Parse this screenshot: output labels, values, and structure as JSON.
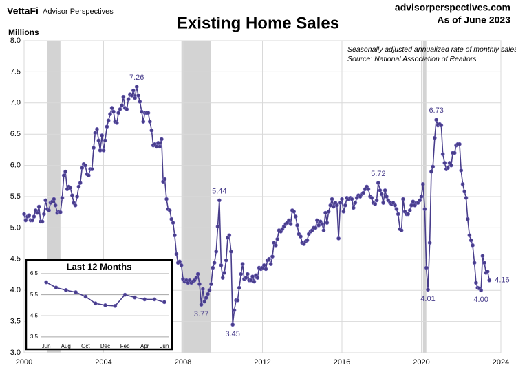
{
  "header": {
    "logo": "VettaFi",
    "brand": "Advisor Perspectives",
    "site": "advisorperspectives.com",
    "date": "As of June 2023"
  },
  "chart_data": [
    {
      "type": "line",
      "title": "Existing Home Sales",
      "y_label": "Millions",
      "notes": [
        "Seasonally adjusted annualized rate of monthly sales",
        "Source: National Association of Realtors"
      ],
      "xlim": [
        2000,
        2024
      ],
      "xticks": [
        2000,
        2004,
        2008,
        2012,
        2016,
        2020,
        2024
      ],
      "ylim": [
        3,
        8
      ],
      "yticks": [
        {
          "value": 3,
          "label": "3.0"
        },
        3.5,
        {
          "value": 4,
          "label": "4.0"
        },
        4.5,
        {
          "value": 5,
          "label": "5.0"
        },
        5.5,
        {
          "value": 6,
          "label": "6.0"
        },
        6.5,
        {
          "value": 7,
          "label": "7.0"
        },
        7.5,
        {
          "value": 8,
          "label": "8.0"
        }
      ],
      "grid": true,
      "recessions": [
        [
          2001.17,
          2001.83
        ],
        [
          2007.92,
          2009.42
        ],
        [
          2020.08,
          2020.25
        ]
      ],
      "recession_color": "#d3d3d3",
      "x": [
        2000,
        2000.08,
        2000.17,
        2000.25,
        2000.33,
        2000.42,
        2000.5,
        2000.58,
        2000.67,
        2000.75,
        2000.83,
        2000.92,
        2001,
        2001.08,
        2001.17,
        2001.25,
        2001.33,
        2001.42,
        2001.5,
        2001.58,
        2001.67,
        2001.75,
        2001.83,
        2001.92,
        2002,
        2002.08,
        2002.17,
        2002.25,
        2002.33,
        2002.42,
        2002.5,
        2002.58,
        2002.67,
        2002.75,
        2002.83,
        2002.92,
        2003,
        2003.08,
        2003.17,
        2003.25,
        2003.33,
        2003.42,
        2003.5,
        2003.58,
        2003.67,
        2003.75,
        2003.83,
        2003.92,
        2004,
        2004.08,
        2004.17,
        2004.25,
        2004.33,
        2004.42,
        2004.5,
        2004.58,
        2004.67,
        2004.75,
        2004.83,
        2004.92,
        2005,
        2005.08,
        2005.17,
        2005.25,
        2005.33,
        2005.42,
        2005.5,
        2005.58,
        2005.67,
        2005.75,
        2005.83,
        2005.92,
        2006,
        2006.08,
        2006.17,
        2006.25,
        2006.33,
        2006.42,
        2006.5,
        2006.58,
        2006.67,
        2006.75,
        2006.83,
        2006.92,
        2007,
        2007.08,
        2007.17,
        2007.25,
        2007.33,
        2007.42,
        2007.5,
        2007.58,
        2007.67,
        2007.75,
        2007.83,
        2007.92,
        2008,
        2008.08,
        2008.17,
        2008.25,
        2008.33,
        2008.42,
        2008.5,
        2008.58,
        2008.67,
        2008.75,
        2008.83,
        2008.92,
        2009,
        2009.08,
        2009.17,
        2009.25,
        2009.33,
        2009.42,
        2009.5,
        2009.58,
        2009.67,
        2009.75,
        2009.83,
        2009.92,
        2010,
        2010.08,
        2010.17,
        2010.25,
        2010.33,
        2010.42,
        2010.5,
        2010.58,
        2010.67,
        2010.75,
        2010.83,
        2010.92,
        2011,
        2011.08,
        2011.17,
        2011.25,
        2011.33,
        2011.42,
        2011.5,
        2011.58,
        2011.67,
        2011.75,
        2011.83,
        2011.92,
        2012,
        2012.08,
        2012.17,
        2012.25,
        2012.33,
        2012.42,
        2012.5,
        2012.58,
        2012.67,
        2012.75,
        2012.83,
        2012.92,
        2013,
        2013.08,
        2013.17,
        2013.25,
        2013.33,
        2013.42,
        2013.5,
        2013.58,
        2013.67,
        2013.75,
        2013.83,
        2013.92,
        2014,
        2014.08,
        2014.17,
        2014.25,
        2014.33,
        2014.42,
        2014.5,
        2014.58,
        2014.67,
        2014.75,
        2014.83,
        2014.92,
        2015,
        2015.08,
        2015.17,
        2015.25,
        2015.33,
        2015.42,
        2015.5,
        2015.58,
        2015.67,
        2015.75,
        2015.83,
        2015.92,
        2016,
        2016.08,
        2016.17,
        2016.25,
        2016.33,
        2016.42,
        2016.5,
        2016.58,
        2016.67,
        2016.75,
        2016.83,
        2016.92,
        2017,
        2017.08,
        2017.17,
        2017.25,
        2017.33,
        2017.42,
        2017.5,
        2017.58,
        2017.67,
        2017.75,
        2017.83,
        2017.92,
        2018,
        2018.08,
        2018.17,
        2018.25,
        2018.33,
        2018.42,
        2018.5,
        2018.58,
        2018.67,
        2018.75,
        2018.83,
        2018.92,
        2019,
        2019.08,
        2019.17,
        2019.25,
        2019.33,
        2019.42,
        2019.5,
        2019.58,
        2019.67,
        2019.75,
        2019.83,
        2019.92,
        2020,
        2020.08,
        2020.17,
        2020.25,
        2020.33,
        2020.42,
        2020.5,
        2020.58,
        2020.67,
        2020.75,
        2020.83,
        2020.92,
        2021,
        2021.08,
        2021.17,
        2021.25,
        2021.33,
        2021.42,
        2021.5,
        2021.58,
        2021.67,
        2021.75,
        2021.83,
        2021.92,
        2022,
        2022.08,
        2022.17,
        2022.25,
        2022.33,
        2022.42,
        2022.5,
        2022.58,
        2022.67,
        2022.75,
        2022.83,
        2022.92,
        2023,
        2023.08,
        2023.17,
        2023.25,
        2023.33,
        2023.42
      ],
      "series": [
        {
          "name": "Existing Home Sales",
          "color": "#483d8b",
          "values": [
            5.22,
            5.12,
            5.18,
            5.2,
            5.12,
            5.12,
            5.18,
            5.28,
            5.24,
            5.34,
            5.1,
            5.1,
            5.22,
            5.44,
            5.3,
            5.28,
            5.4,
            5.42,
            5.46,
            5.36,
            5.24,
            5.26,
            5.25,
            5.48,
            5.84,
            5.9,
            5.62,
            5.66,
            5.64,
            5.52,
            5.4,
            5.36,
            5.5,
            5.66,
            5.72,
            5.96,
            6.02,
            6.0,
            5.86,
            5.84,
            5.94,
            5.94,
            6.28,
            6.52,
            6.58,
            6.4,
            6.24,
            6.48,
            6.24,
            6.4,
            6.62,
            6.72,
            6.82,
            6.92,
            6.86,
            6.7,
            6.68,
            6.84,
            6.9,
            6.96,
            7.1,
            6.92,
            6.9,
            7.06,
            7.14,
            7.12,
            7.2,
            7.08,
            7.26,
            7.12,
            7.02,
            6.86,
            6.7,
            6.84,
            6.84,
            6.84,
            6.7,
            6.56,
            6.32,
            6.34,
            6.3,
            6.36,
            6.3,
            6.42,
            5.74,
            5.78,
            5.46,
            5.3,
            5.28,
            5.14,
            5.08,
            4.88,
            4.58,
            4.44,
            4.46,
            4.4,
            4.18,
            4.14,
            4.16,
            4.12,
            4.16,
            4.12,
            4.14,
            4.16,
            4.2,
            4.26,
            4.1,
            3.77,
            4.02,
            3.82,
            3.88,
            3.94,
            4.0,
            4.1,
            4.36,
            4.44,
            4.62,
            5.02,
            5.44,
            4.4,
            4.2,
            4.28,
            4.48,
            4.84,
            4.88,
            4.62,
            3.45,
            3.68,
            3.84,
            3.84,
            4.04,
            4.26,
            4.42,
            4.18,
            4.2,
            4.26,
            4.16,
            4.16,
            4.22,
            4.14,
            4.24,
            4.2,
            4.36,
            4.34,
            4.36,
            4.4,
            4.34,
            4.48,
            4.5,
            4.42,
            4.54,
            4.76,
            4.72,
            4.82,
            4.96,
            4.94,
            4.98,
            5.02,
            5.06,
            5.08,
            5.12,
            5.06,
            5.28,
            5.26,
            5.18,
            5.04,
            4.9,
            4.86,
            4.76,
            4.74,
            4.78,
            4.8,
            4.9,
            4.94,
            4.96,
            5.0,
            5.0,
            5.12,
            5.04,
            5.1,
            5.06,
            4.96,
            5.24,
            5.08,
            5.26,
            5.36,
            5.46,
            5.34,
            5.4,
            5.36,
            4.83,
            5.4,
            5.46,
            5.26,
            5.36,
            5.48,
            5.46,
            5.48,
            5.46,
            5.32,
            5.4,
            5.48,
            5.52,
            5.5,
            5.54,
            5.56,
            5.62,
            5.66,
            5.62,
            5.5,
            5.48,
            5.4,
            5.38,
            5.44,
            5.72,
            5.6,
            5.54,
            5.4,
            5.6,
            5.5,
            5.44,
            5.4,
            5.38,
            5.4,
            5.36,
            5.3,
            5.22,
            4.98,
            4.96,
            5.46,
            5.26,
            5.22,
            5.22,
            5.28,
            5.36,
            5.42,
            5.36,
            5.4,
            5.4,
            5.44,
            5.5,
            5.7,
            5.3,
            4.36,
            4.01,
            4.76,
            5.9,
            5.98,
            6.44,
            6.73,
            6.64,
            6.66,
            6.64,
            6.18,
            6.04,
            5.94,
            5.96,
            6.04,
            6.0,
            6.2,
            6.2,
            6.32,
            6.34,
            6.34,
            5.92,
            5.7,
            5.58,
            5.48,
            5.14,
            4.88,
            4.8,
            4.72,
            4.44,
            4.12,
            4.04,
            4.03,
            4.0,
            4.55,
            4.44,
            4.28,
            4.3,
            4.16
          ],
          "value_labels": [
            null,
            null,
            null,
            null,
            null,
            null,
            null,
            null,
            null,
            null,
            null,
            null,
            null,
            null,
            null,
            null,
            null,
            null,
            null,
            null,
            null,
            null,
            null,
            null,
            null,
            null,
            null,
            null,
            null,
            null,
            null,
            null,
            null,
            null,
            null,
            null,
            null,
            null,
            null,
            null,
            null,
            null,
            null,
            null,
            null,
            null,
            null,
            null,
            null,
            null,
            null,
            null,
            null,
            null,
            null,
            null,
            null,
            null,
            null,
            null,
            null,
            null,
            null,
            null,
            null,
            null,
            null,
            null,
            "7.26",
            null,
            null,
            null,
            null,
            null,
            null,
            null,
            null,
            null,
            null,
            null,
            null,
            null,
            null,
            null,
            null,
            null,
            null,
            null,
            null,
            null,
            null,
            null,
            null,
            null,
            null,
            null,
            null,
            null,
            null,
            null,
            null,
            null,
            null,
            null,
            null,
            null,
            null,
            "3.77",
            null,
            null,
            null,
            null,
            null,
            null,
            null,
            null,
            null,
            null,
            "5.44",
            null,
            null,
            null,
            null,
            null,
            null,
            null,
            "3.45",
            null,
            null,
            null,
            null,
            null,
            null,
            null,
            null,
            null,
            null,
            null,
            null,
            null,
            null,
            null,
            null,
            null,
            null,
            null,
            null,
            null,
            null,
            null,
            null,
            null,
            null,
            null,
            null,
            null,
            null,
            null,
            null,
            null,
            null,
            null,
            null,
            null,
            null,
            null,
            null,
            null,
            null,
            null,
            null,
            null,
            null,
            null,
            null,
            null,
            null,
            null,
            null,
            null,
            null,
            null,
            null,
            null,
            null,
            null,
            null,
            null,
            null,
            null,
            null,
            null,
            null,
            null,
            null,
            null,
            null,
            null,
            null,
            null,
            null,
            null,
            null,
            null,
            null,
            null,
            null,
            null,
            null,
            null,
            null,
            null,
            null,
            null,
            "5.72",
            null,
            null,
            null,
            null,
            null,
            null,
            null,
            null,
            null,
            null,
            null,
            null,
            null,
            null,
            null,
            null,
            null,
            null,
            null,
            null,
            null,
            null,
            null,
            null,
            null,
            null,
            null,
            null,
            null,
            "4.01",
            null,
            null,
            null,
            null,
            "6.73",
            null,
            null,
            null,
            null,
            null,
            null,
            null,
            null,
            null,
            null,
            null,
            null,
            null,
            null,
            null,
            null,
            null,
            null,
            null,
            null,
            null,
            null,
            null,
            null,
            null,
            null,
            "4.00",
            null,
            null,
            null,
            null,
            "4.16"
          ]
        }
      ]
    },
    {
      "type": "line",
      "title": "Last 12 Months",
      "categories": [
        "Jun",
        null,
        "Aug",
        null,
        "Oct",
        null,
        "Dec",
        null,
        "Feb",
        null,
        "Apr",
        null,
        "Jun"
      ],
      "ylim": [
        3.3,
        6.7
      ],
      "yticks": [
        3.5,
        4.5,
        5.5,
        6.5
      ],
      "grid": true,
      "series": [
        {
          "name": "Last 12 Months",
          "color": "#483d8b",
          "values": [
            6.09,
            5.84,
            5.72,
            5.62,
            5.41,
            5.09,
            5.0,
            4.97,
            5.5,
            5.37,
            5.28,
            5.28,
            5.15
          ]
        }
      ]
    }
  ]
}
